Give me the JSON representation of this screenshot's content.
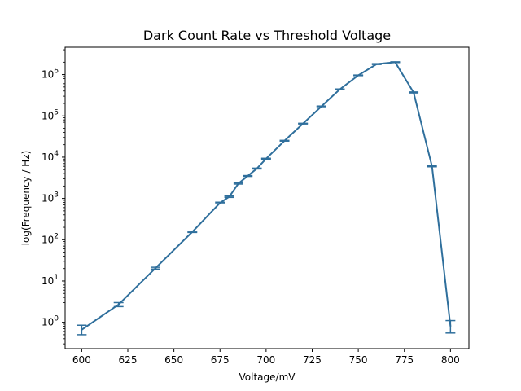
{
  "chart_data": {
    "type": "line",
    "title": "Dark Count Rate vs Threshold Voltage",
    "xlabel": "Voltage/mV",
    "ylabel": "log(Frequency / Hz)",
    "yscale": "log",
    "xlim": [
      591,
      810
    ],
    "ylim": [
      0.23,
      4600000
    ],
    "grid": false,
    "xticks": [
      600,
      625,
      650,
      675,
      700,
      725,
      750,
      775,
      800
    ],
    "xtick_labels": [
      "600",
      "625",
      "650",
      "675",
      "700",
      "725",
      "750",
      "775",
      "800"
    ],
    "yticks": [
      1,
      10,
      100,
      1000,
      10000,
      100000,
      1000000
    ],
    "ytick_labels": [
      {
        "base": "10",
        "exp": "0"
      },
      {
        "base": "10",
        "exp": "1"
      },
      {
        "base": "10",
        "exp": "2"
      },
      {
        "base": "10",
        "exp": "3"
      },
      {
        "base": "10",
        "exp": "4"
      },
      {
        "base": "10",
        "exp": "5"
      },
      {
        "base": "10",
        "exp": "6"
      }
    ],
    "color": "#2f6f9c",
    "series": [
      {
        "x": [
          600,
          620,
          640,
          660,
          675,
          680,
          685,
          690,
          695,
          700,
          710,
          720,
          730,
          740,
          750,
          760,
          770,
          780,
          790,
          800
        ],
        "y": [
          0.66,
          2.7,
          20.5,
          155,
          780,
          1100,
          2300,
          3500,
          5300,
          9200,
          25000,
          65000,
          170000,
          440000,
          960000,
          1800000,
          2000000,
          370000,
          6000,
          0.8
        ],
        "yerr_low": [
          0.5,
          2.4,
          19.5,
          150,
          750,
          1060,
          2230,
          3420,
          5180,
          9000,
          24500,
          63800,
          167000,
          432000,
          945000,
          1760000,
          1960000,
          360000,
          5850,
          0.55
        ],
        "yerr_high": [
          0.85,
          3.0,
          21.5,
          160,
          810,
          1140,
          2370,
          3580,
          5420,
          9400,
          25500,
          66200,
          173000,
          448000,
          975000,
          1840000,
          2040000,
          380000,
          6150,
          1.1
        ]
      }
    ]
  }
}
